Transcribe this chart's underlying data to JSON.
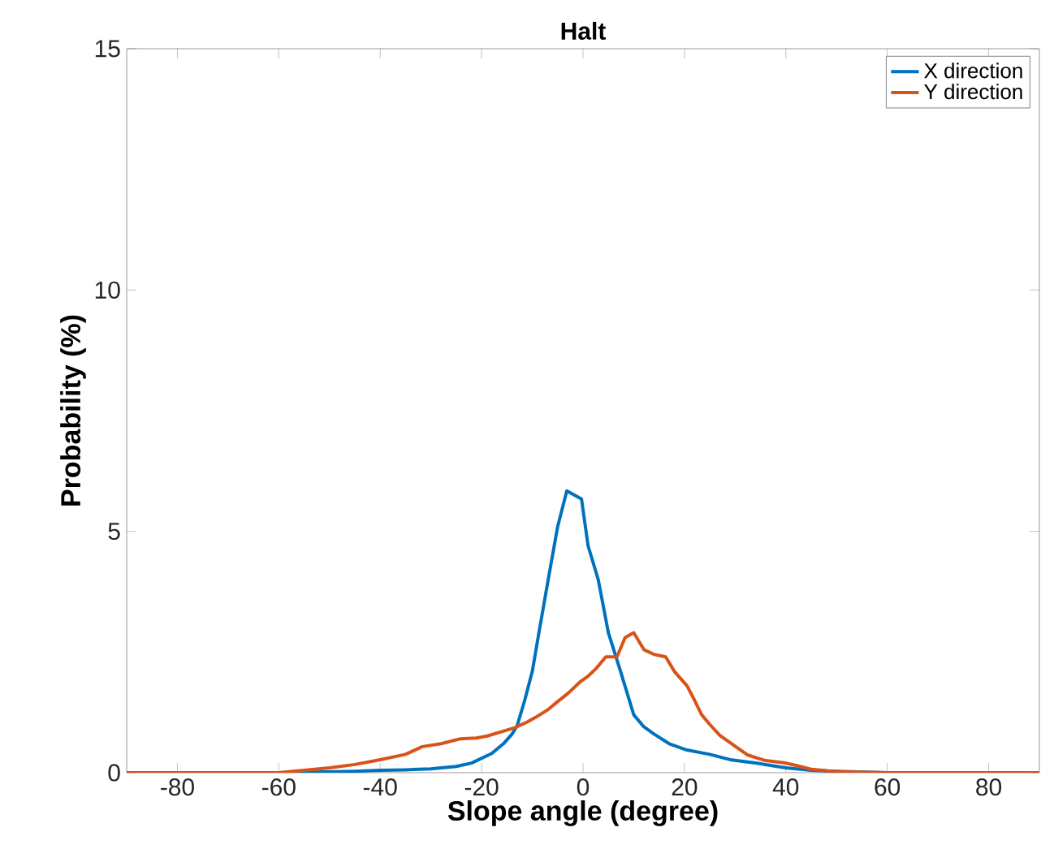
{
  "chart_data": {
    "type": "line",
    "title": "Halt",
    "xlabel": "Slope angle (degree)",
    "ylabel": "Probability (%)",
    "xlim": [
      -90,
      90
    ],
    "ylim": [
      0,
      15
    ],
    "xticks": [
      -80,
      -60,
      -40,
      -20,
      0,
      20,
      40,
      60,
      80
    ],
    "yticks": [
      0,
      5,
      10,
      15
    ],
    "grid": false,
    "legend": "top right",
    "marker": "none",
    "line_style": "solid",
    "series": [
      {
        "name": "X direction",
        "color": "#0072bd",
        "x": [
          -90,
          -60,
          -55,
          -45,
          -40,
          -35,
          -30,
          -25,
          -22,
          -20,
          -18,
          -15.7,
          -14,
          -13,
          -11.5,
          -10,
          -8.7,
          -6.7,
          -5,
          -3.2,
          -0.3,
          1,
          3,
          5,
          7.4,
          10,
          12,
          14,
          17,
          20.5,
          25,
          29,
          34,
          40,
          45,
          50,
          60,
          90
        ],
        "values": [
          0,
          0,
          0.01,
          0.03,
          0.05,
          0.06,
          0.08,
          0.13,
          0.2,
          0.3,
          0.4,
          0.6,
          0.8,
          0.97,
          1.5,
          2.1,
          2.9,
          4.1,
          5.1,
          5.84,
          5.67,
          4.7,
          4.0,
          2.9,
          2.1,
          1.2,
          0.95,
          0.8,
          0.6,
          0.47,
          0.38,
          0.27,
          0.2,
          0.1,
          0.05,
          0.03,
          0,
          0
        ]
      },
      {
        "name": "Y direction",
        "color": "#d95319",
        "x": [
          -90,
          -60,
          -58,
          -55,
          -50,
          -45,
          -40,
          -35,
          -31.7,
          -28,
          -24.3,
          -21,
          -18.9,
          -16,
          -13.5,
          -11,
          -9.3,
          -7,
          -5.4,
          -2.9,
          -0.6,
          1,
          2.5,
          4.5,
          6.7,
          8.3,
          10,
          12,
          14,
          16.3,
          18,
          20.5,
          22,
          23.4,
          25,
          27,
          30,
          32.4,
          36,
          40,
          42,
          45,
          50,
          60,
          90
        ],
        "values": [
          0,
          0,
          0.02,
          0.05,
          0.1,
          0.17,
          0.27,
          0.38,
          0.54,
          0.6,
          0.7,
          0.72,
          0.76,
          0.85,
          0.93,
          1.05,
          1.15,
          1.3,
          1.44,
          1.65,
          1.88,
          2.0,
          2.15,
          2.4,
          2.4,
          2.8,
          2.9,
          2.55,
          2.45,
          2.4,
          2.1,
          1.8,
          1.5,
          1.2,
          1.0,
          0.77,
          0.55,
          0.37,
          0.25,
          0.2,
          0.15,
          0.07,
          0.02,
          0,
          0
        ]
      }
    ]
  }
}
